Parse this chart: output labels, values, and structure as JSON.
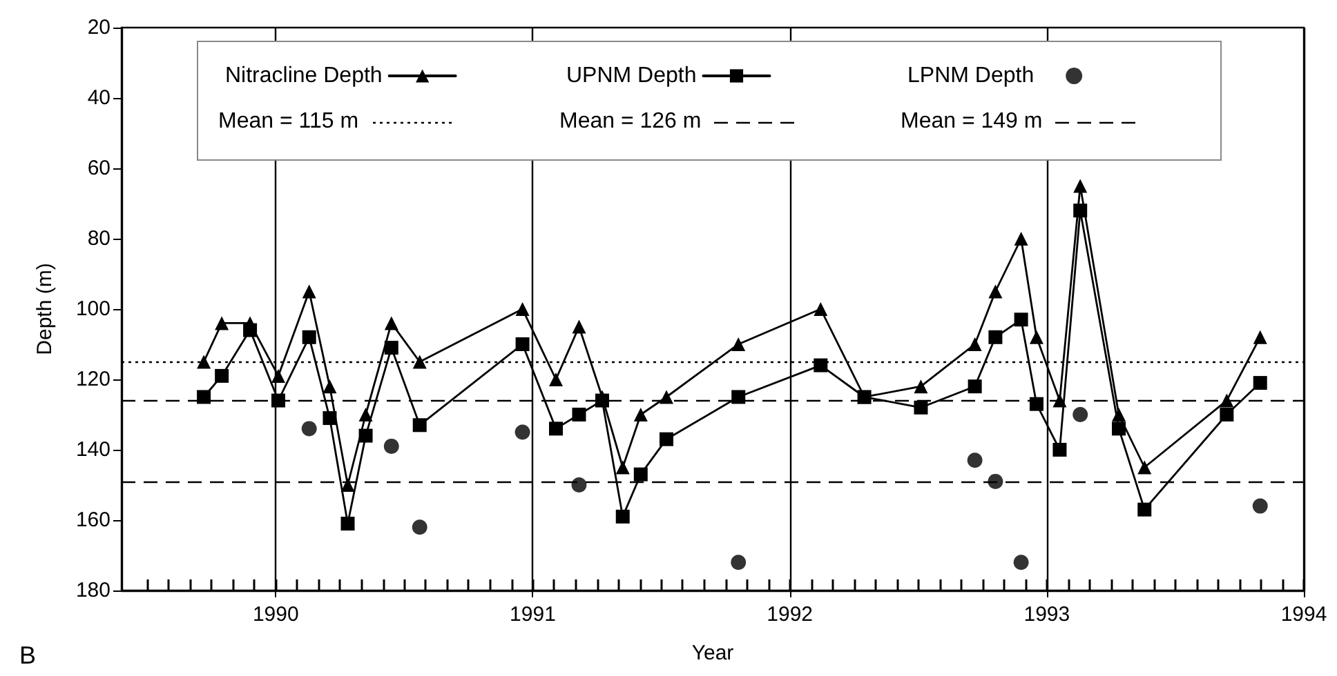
{
  "chart_data": {
    "type": "line",
    "xlabel": "Year",
    "ylabel": "Depth (m)",
    "annotations": [
      "B"
    ],
    "xlim": [
      1989.4,
      1994
    ],
    "ylim": [
      180,
      20
    ],
    "yticks": [
      20,
      40,
      60,
      80,
      100,
      120,
      140,
      160,
      180
    ],
    "xticks": [
      {
        "value": 1989.5,
        "label": null
      },
      {
        "value": 1989.583,
        "label": null
      },
      {
        "value": 1989.667,
        "label": null
      },
      {
        "value": 1989.75,
        "label": null
      },
      {
        "value": 1989.833,
        "label": null
      },
      {
        "value": 1989.917,
        "label": null
      },
      1990,
      {
        "value": 1990.083,
        "label": null
      },
      {
        "value": 1990.167,
        "label": null
      },
      {
        "value": 1990.25,
        "label": null
      },
      {
        "value": 1990.333,
        "label": null
      },
      {
        "value": 1990.417,
        "label": null
      },
      {
        "value": 1990.5,
        "label": null
      },
      {
        "value": 1990.583,
        "label": null
      },
      {
        "value": 1990.667,
        "label": null
      },
      {
        "value": 1990.75,
        "label": null
      },
      {
        "value": 1990.833,
        "label": null
      },
      {
        "value": 1990.917,
        "label": null
      },
      1991,
      {
        "value": 1991.083,
        "label": null
      },
      {
        "value": 1991.167,
        "label": null
      },
      {
        "value": 1991.25,
        "label": null
      },
      {
        "value": 1991.333,
        "label": null
      },
      {
        "value": 1991.417,
        "label": null
      },
      {
        "value": 1991.5,
        "label": null
      },
      {
        "value": 1991.583,
        "label": null
      },
      {
        "value": 1991.667,
        "label": null
      },
      {
        "value": 1991.75,
        "label": null
      },
      {
        "value": 1991.833,
        "label": null
      },
      {
        "value": 1991.917,
        "label": null
      },
      1992,
      {
        "value": 1992.083,
        "label": null
      },
      {
        "value": 1992.167,
        "label": null
      },
      {
        "value": 1992.25,
        "label": null
      },
      {
        "value": 1992.333,
        "label": null
      },
      {
        "value": 1992.417,
        "label": null
      },
      {
        "value": 1992.5,
        "label": null
      },
      {
        "value": 1992.583,
        "label": null
      },
      {
        "value": 1992.667,
        "label": null
      },
      {
        "value": 1992.75,
        "label": null
      },
      {
        "value": 1992.833,
        "label": null
      },
      {
        "value": 1992.917,
        "label": null
      },
      1993,
      {
        "value": 1993.083,
        "label": null
      },
      {
        "value": 1993.167,
        "label": null
      },
      {
        "value": 1993.25,
        "label": null
      },
      {
        "value": 1993.333,
        "label": null
      },
      {
        "value": 1993.417,
        "label": null
      },
      {
        "value": 1993.5,
        "label": null
      },
      {
        "value": 1993.583,
        "label": null
      },
      {
        "value": 1993.667,
        "label": null
      },
      {
        "value": 1993.75,
        "label": null
      },
      {
        "value": 1993.833,
        "label": null
      },
      {
        "value": 1993.917,
        "label": null
      },
      1994
    ],
    "grid": "x",
    "legend": "top",
    "line_style": "solid",
    "series": [
      {
        "name": "Nitracline Depth",
        "color": "#000000",
        "marker": "triangle",
        "x": [
          1989.72,
          1989.79,
          1989.9,
          1990.01,
          1990.13,
          1990.21,
          1990.28,
          1990.35,
          1990.45,
          1990.56,
          1990.96,
          1991.09,
          1991.18,
          1991.27,
          1991.35,
          1991.42,
          1991.52,
          1991.8,
          1992.12,
          1992.29,
          1992.51,
          1992.72,
          1992.8,
          1992.9,
          1992.96,
          1993.05,
          1993.13,
          1993.28,
          1993.38,
          1993.7,
          1993.83
        ],
        "values": [
          115,
          104,
          104,
          119,
          95,
          122,
          150,
          130,
          104,
          115,
          100,
          120,
          105,
          125,
          145,
          130,
          125,
          110,
          100,
          125,
          122,
          110,
          95,
          80,
          108,
          126,
          65,
          130,
          145,
          126,
          108
        ]
      },
      {
        "name": "UPNM Depth",
        "color": "#000000",
        "marker": "square",
        "x": [
          1989.72,
          1989.79,
          1989.9,
          1990.01,
          1990.13,
          1990.21,
          1990.28,
          1990.35,
          1990.45,
          1990.56,
          1990.96,
          1991.09,
          1991.18,
          1991.27,
          1991.35,
          1991.42,
          1991.52,
          1991.8,
          1992.12,
          1992.29,
          1992.51,
          1992.72,
          1992.8,
          1992.9,
          1992.96,
          1993.05,
          1993.13,
          1993.28,
          1993.38,
          1993.7,
          1993.83
        ],
        "values": [
          125,
          119,
          106,
          126,
          108,
          131,
          161,
          136,
          111,
          133,
          110,
          134,
          130,
          126,
          159,
          147,
          137,
          125,
          116,
          125,
          128,
          122,
          108,
          103,
          127,
          140,
          72,
          134,
          157,
          130,
          121
        ]
      },
      {
        "name": "LPNM Depth",
        "color": "#000000",
        "type": "scatter",
        "marker": "circle",
        "x": [
          1990.13,
          1990.45,
          1990.56,
          1990.96,
          1991.18,
          1991.8,
          1992.72,
          1992.8,
          1992.9,
          1993.13,
          1993.83
        ],
        "values": [
          134,
          139,
          162,
          135,
          150,
          172,
          143,
          149,
          172,
          130,
          156
        ]
      }
    ],
    "ref_lines": [
      {
        "axis": "y",
        "value": 115,
        "label": "Mean = 115 m",
        "line_style": "dotted",
        "color": "#000000"
      },
      {
        "axis": "y",
        "value": 126,
        "label": "Mean = 126 m",
        "line_style": "dashed",
        "color": "#000000"
      },
      {
        "axis": "y",
        "value": 149,
        "label": "Mean = 149 m",
        "line_style": "dashed",
        "color": "#000000"
      }
    ]
  }
}
